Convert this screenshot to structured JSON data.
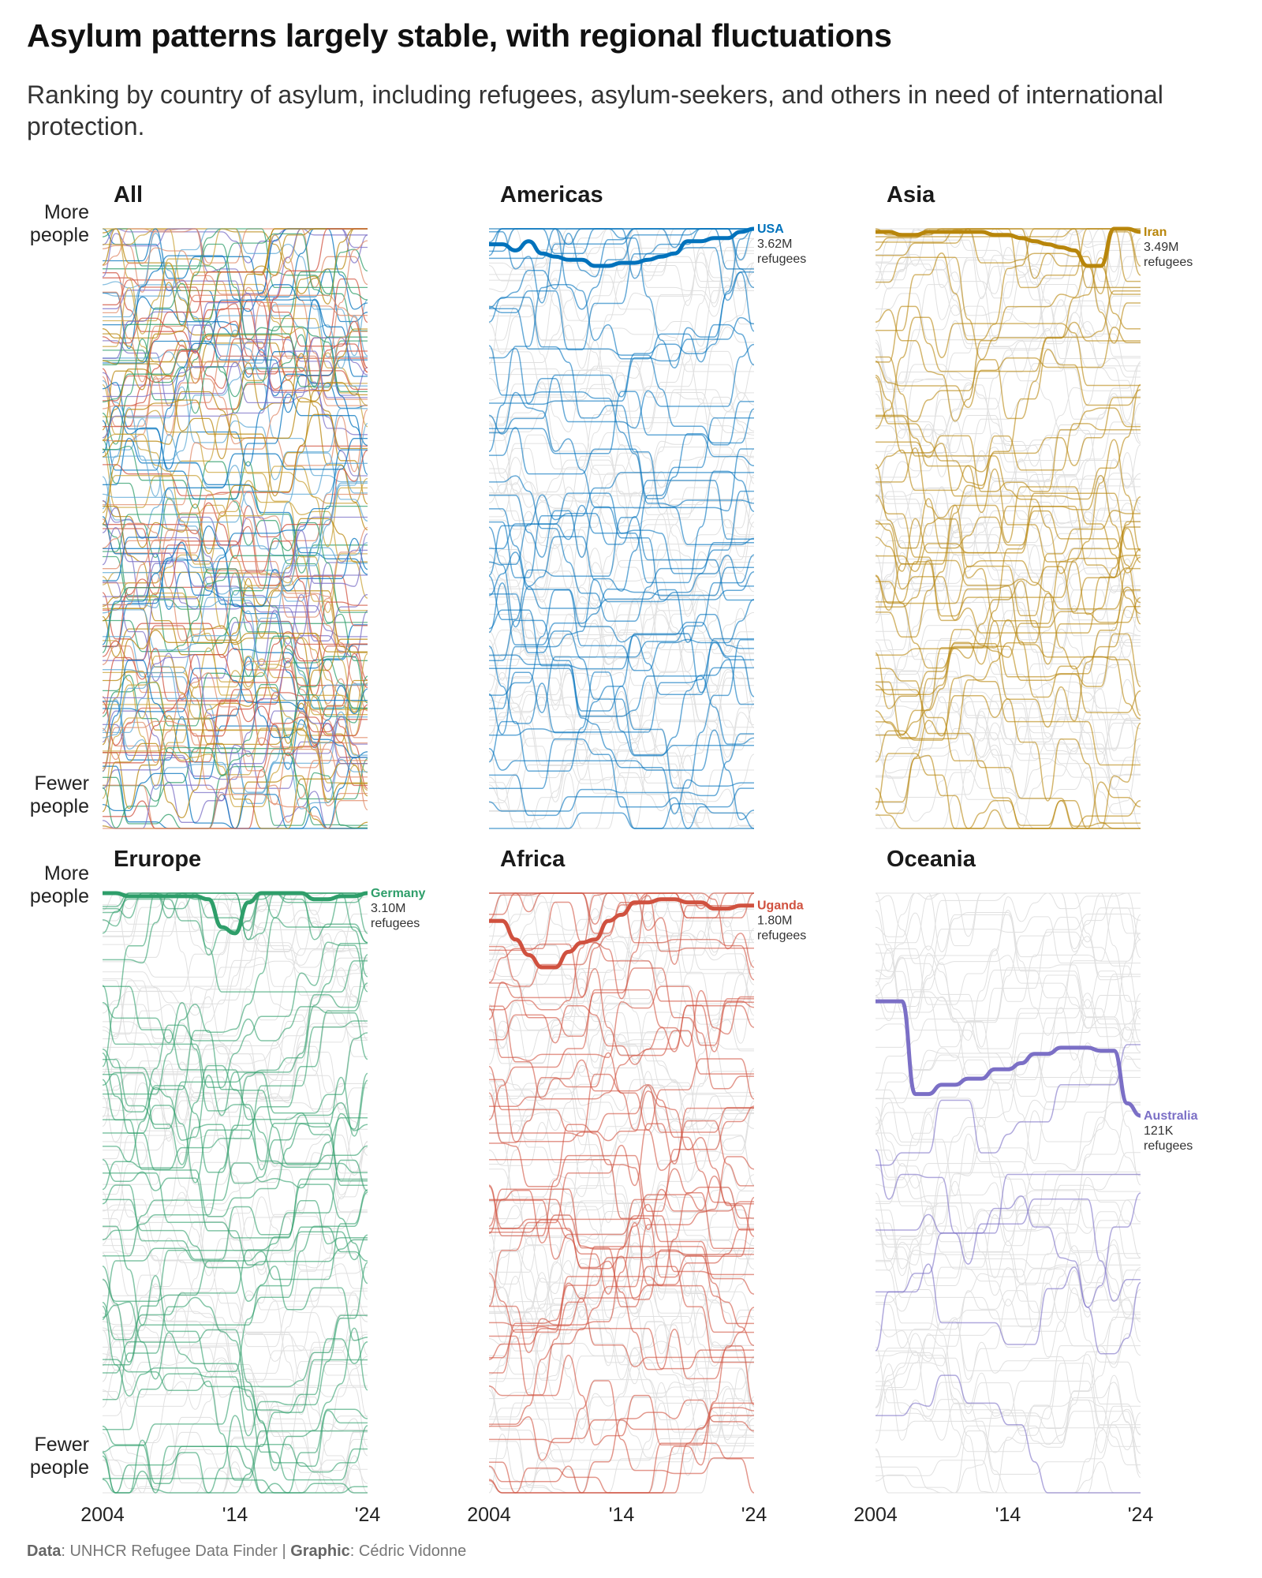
{
  "title": "Asylum patterns largely stable, with regional fluctuations",
  "subtitle": "Ranking by country of asylum, including refugees, asylum-seekers, and others in need of international protection.",
  "y_axis": {
    "top_label_line1": "More",
    "top_label_line2": "people",
    "bottom_label_line1": "Fewer",
    "bottom_label_line2": "people"
  },
  "x_axis": {
    "ticks": [
      "2004",
      "'14",
      "'24"
    ]
  },
  "footer": {
    "data_label": "Data",
    "data_value": ": UNHCR Refugee Data Finder | ",
    "graphic_label": "Graphic",
    "graphic_value": ": Cédric Vidonne"
  },
  "chart_data": {
    "type": "line",
    "description_units": "rank among countries of asylum (1 = most people)",
    "x": [
      2004,
      2005,
      2006,
      2007,
      2008,
      2009,
      2010,
      2011,
      2012,
      2013,
      2014,
      2015,
      2016,
      2017,
      2018,
      2019,
      2020,
      2021,
      2022,
      2023,
      2024
    ],
    "ylim": [
      1,
      195
    ],
    "panels": [
      {
        "title": "All",
        "region": "all",
        "color": "#888888",
        "highlight": null
      },
      {
        "title": "Americas",
        "region": "americas",
        "color": "#0072BC",
        "highlight": {
          "name": "USA",
          "value": "3.62M",
          "unit": "refugees",
          "ranks": [
            6,
            6,
            8,
            5,
            9,
            10,
            11,
            11,
            13,
            13,
            12,
            12,
            11,
            10,
            9,
            5,
            5,
            4,
            4,
            2,
            1
          ]
        }
      },
      {
        "title": "Asia",
        "region": "asia",
        "color": "#B8860B",
        "highlight": {
          "name": "Iran",
          "value": "3.49M",
          "unit": "refugees",
          "ranks": [
            2,
            2,
            3,
            3,
            2,
            2,
            2,
            2,
            2,
            3,
            3,
            4,
            5,
            6,
            7,
            8,
            13,
            13,
            1,
            1,
            2
          ]
        }
      },
      {
        "title": "Erurope",
        "region": "europe",
        "color": "#2E9E6A",
        "highlight": {
          "name": "Germany",
          "value": "3.10M",
          "unit": "refugees",
          "ranks": [
            1,
            1,
            2,
            2,
            2,
            2,
            2,
            2,
            3,
            12,
            14,
            4,
            1,
            1,
            1,
            1,
            3,
            3,
            2,
            2,
            1
          ]
        }
      },
      {
        "title": "Africa",
        "region": "africa",
        "color": "#D0513F",
        "highlight": {
          "name": "Uganda",
          "value": "1.80M",
          "unit": "refugees",
          "ranks": [
            10,
            10,
            16,
            21,
            25,
            25,
            20,
            17,
            16,
            10,
            8,
            4,
            4,
            3,
            3,
            4,
            4,
            6,
            6,
            5,
            5
          ]
        }
      },
      {
        "title": "Oceania",
        "region": "oceania",
        "color": "#7B6FC6",
        "highlight": {
          "name": "Australia",
          "value": "121K",
          "unit": "refugees",
          "ranks": [
            36,
            36,
            36,
            66,
            66,
            63,
            63,
            61,
            61,
            58,
            58,
            56,
            53,
            53,
            51,
            51,
            51,
            52,
            52,
            69,
            73
          ]
        }
      }
    ]
  },
  "colors": {
    "all_palette": [
      "#0072BC",
      "#B8860B",
      "#2E9E6A",
      "#D0513F",
      "#7B6FC6",
      "#E08B6A",
      "#5FA9D6",
      "#C9A33A"
    ],
    "background_lines": "#c8c8c8"
  }
}
